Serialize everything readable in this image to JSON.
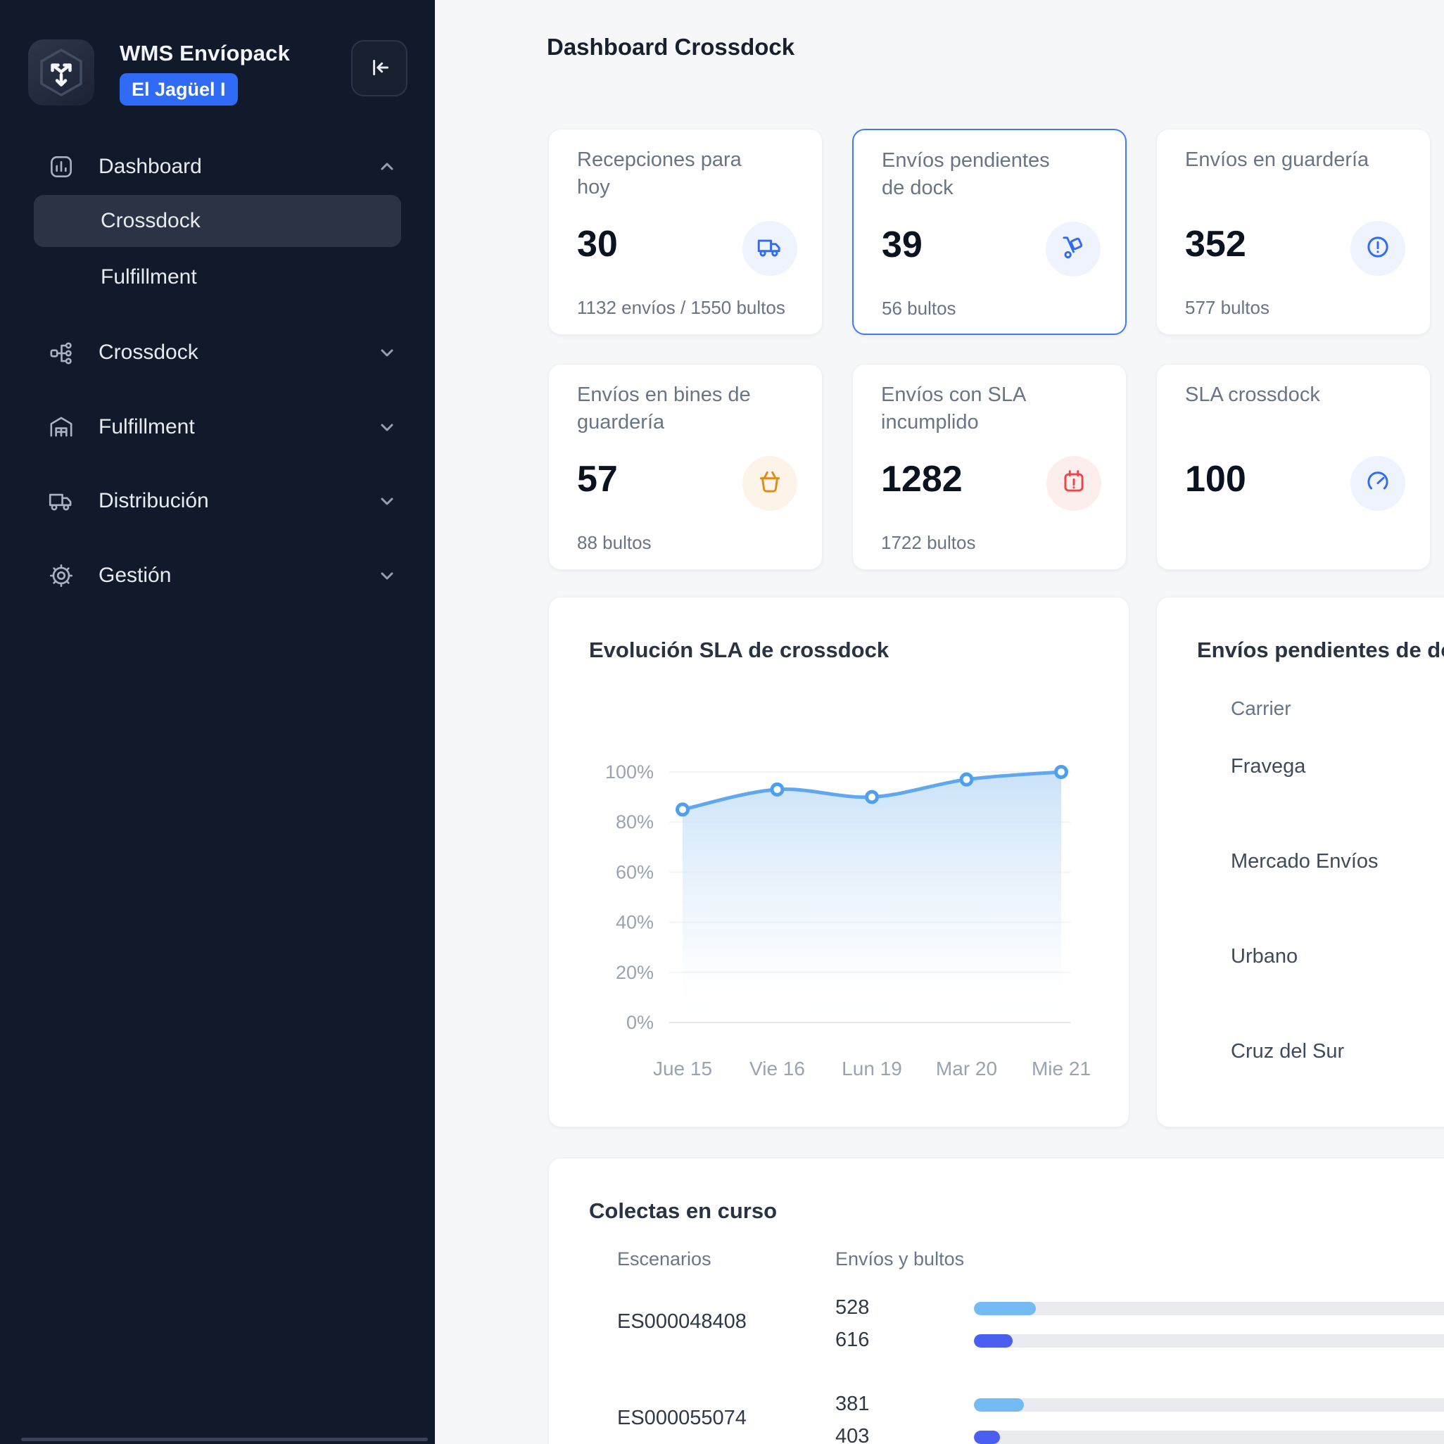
{
  "sidebar": {
    "brand": {
      "title": "WMS Envíopack",
      "badge": "El Jagüel I"
    },
    "menu": [
      {
        "label": "Dashboard",
        "icon": "dashboard-icon",
        "expanded": true,
        "children": [
          {
            "label": "Crossdock",
            "active": true
          },
          {
            "label": "Fulfillment",
            "active": false
          }
        ]
      },
      {
        "label": "Crossdock",
        "icon": "network-icon"
      },
      {
        "label": "Fulfillment",
        "icon": "warehouse-icon"
      },
      {
        "label": "Distribución",
        "icon": "truck-icon"
      },
      {
        "label": "Gestión",
        "icon": "gear-icon"
      }
    ]
  },
  "header": {
    "title": "Dashboard Crossdock"
  },
  "kpis": [
    {
      "title": "Recepciones para hoy",
      "value": "30",
      "subtitle": "1132 envíos / 1550 bultos",
      "icon": "truck-icon",
      "accent": "blue"
    },
    {
      "title": "Envíos pendientes de dock",
      "value": "39",
      "subtitle": "56 bultos",
      "icon": "hand-truck-icon",
      "accent": "blue",
      "selected": true
    },
    {
      "title": "Envíos en guardería",
      "value": "352",
      "subtitle": "577 bultos",
      "icon": "alert-circle-icon",
      "accent": "blue"
    },
    {
      "title": "Envíos en bines de guardería",
      "value": "57",
      "subtitle": "88 bultos",
      "icon": "basket-icon",
      "accent": "orange"
    },
    {
      "title": "Envíos con SLA incumplido",
      "value": "1282",
      "subtitle": "1722 bultos",
      "icon": "calendar-alert-icon",
      "accent": "red"
    },
    {
      "title": "SLA crossdock",
      "value": "100",
      "subtitle": "",
      "icon": "gauge-icon",
      "accent": "blue"
    }
  ],
  "chart_data": {
    "type": "area",
    "title": "Evolución SLA de crossdock",
    "x": [
      "Jue 15",
      "Vie 16",
      "Lun 19",
      "Mar 20",
      "Mie 21"
    ],
    "series": [
      {
        "name": "SLA crossdock",
        "values": [
          85,
          93,
          90,
          97,
          100
        ]
      }
    ],
    "xlabel": "",
    "ylabel": "",
    "ylim": [
      0,
      100
    ],
    "yticks": [
      0,
      20,
      40,
      60,
      80,
      100
    ],
    "ytick_format": "percent",
    "grid": true,
    "legend": "none",
    "line_color": "#5fa8ef",
    "point_style": "white-fill-blue-ring",
    "fill": "light-blue-gradient"
  },
  "pending_panel": {
    "title": "Envíos pendientes de dock",
    "column_header": "Carrier",
    "carriers": [
      "Fravega",
      "Mercado Envíos",
      "Urbano",
      "Cruz del Sur"
    ]
  },
  "colectas": {
    "title": "Colectas en curso",
    "columns": [
      "Escenarios",
      "Envíos y bultos"
    ],
    "rows": [
      {
        "escenario": "ES000048408",
        "envios": "528",
        "bultos": "616",
        "envios_pct": 12,
        "bultos_pct": 7.6
      },
      {
        "escenario": "ES000055074",
        "envios": "381",
        "bultos": "403",
        "envios_pct": 9.7,
        "bultos_pct": 5.1
      }
    ]
  },
  "colors": {
    "sidebar_bg": "#111a2b",
    "badge_blue": "#2f6bf6",
    "accent_blue": "#2f6bf6",
    "accent_blue_bg": "#eef3fd",
    "accent_orange": "#dd8d1a",
    "accent_orange_bg": "#fdf4e9",
    "accent_red": "#ee4545",
    "accent_red_bg": "#fdeeee",
    "selected_card_border": "#3f7bf7",
    "chart_line": "#5fa8ef",
    "bar_envios": "#74bbf3",
    "bar_bultos": "#4a5ff0"
  }
}
